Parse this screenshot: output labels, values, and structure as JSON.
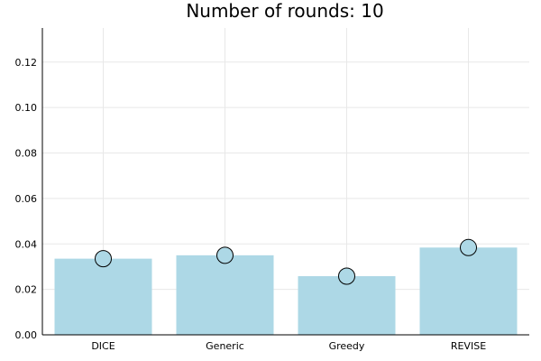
{
  "chart_data": {
    "type": "bar",
    "title": "Number of rounds: 10",
    "categories": [
      "DICE",
      "Generic",
      "Greedy",
      "REVISE"
    ],
    "values": [
      0.0335,
      0.035,
      0.0258,
      0.0384
    ],
    "markers": [
      0.0335,
      0.035,
      0.0258,
      0.0384
    ],
    "yticks": [
      "0.00",
      "0.02",
      "0.04",
      "0.06",
      "0.08",
      "0.10",
      "0.12"
    ],
    "ylim": [
      0,
      0.135
    ],
    "xlabel": "",
    "ylabel": "",
    "grid": true,
    "legend": "none",
    "colors": {
      "bar": "#add8e6",
      "marker_fill": "#add8e6",
      "marker_stroke": "#000000"
    }
  }
}
